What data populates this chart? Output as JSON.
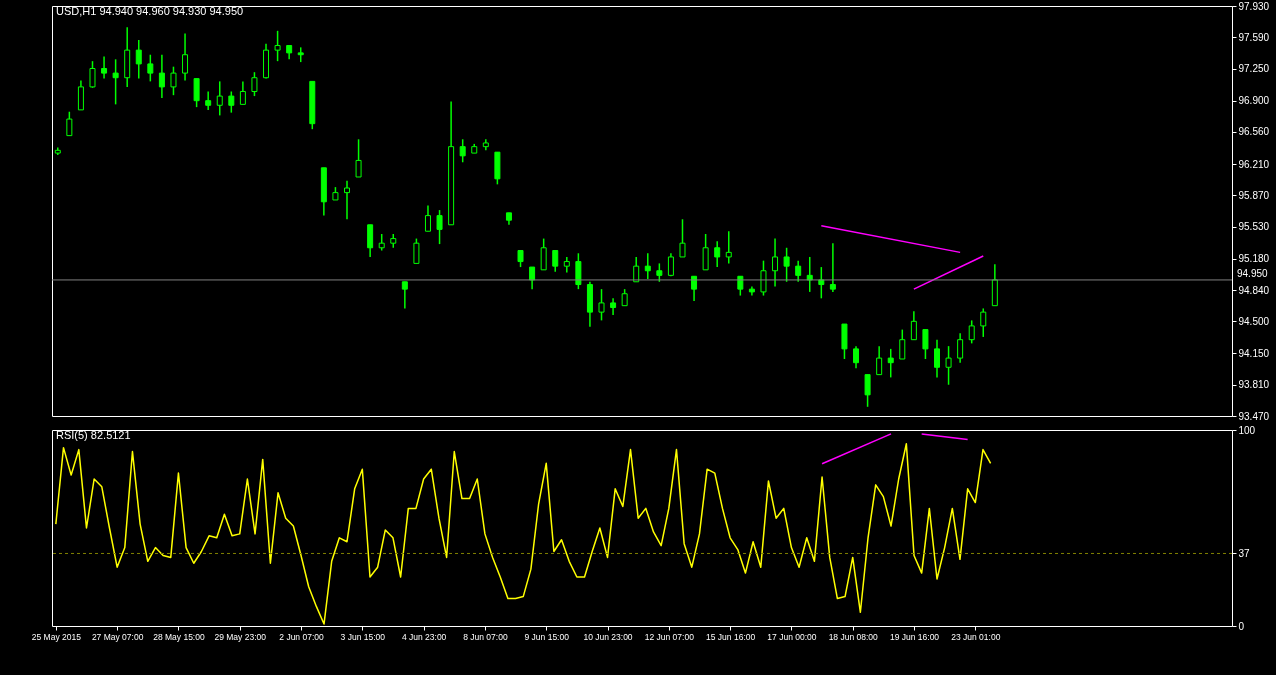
{
  "chart_data": [
    {
      "type": "candlestick",
      "title": "USD,H1  94.940 94.960 94.930 94.950",
      "color": "#00ff00",
      "tick_labels": "y",
      "categories": [
        null,
        null,
        null,
        null,
        null,
        null,
        null,
        null,
        null,
        null,
        null,
        null,
        null,
        null,
        null,
        null,
        null,
        null,
        null,
        null,
        null,
        null,
        null,
        null,
        null,
        null,
        null,
        null,
        null,
        null,
        null,
        null,
        null,
        null,
        null,
        null,
        null,
        null,
        null,
        null,
        null,
        null,
        null,
        null,
        null,
        null,
        null,
        null,
        null,
        null,
        null,
        null,
        null,
        null,
        null,
        null,
        null,
        null,
        null,
        null,
        null,
        null,
        null,
        null,
        null,
        null,
        null,
        null,
        null,
        null,
        null,
        null,
        null,
        null,
        null,
        null,
        null,
        null,
        null,
        null,
        null,
        null,
        null,
        null,
        null,
        null,
        null,
        null,
        null,
        null,
        null,
        null,
        null,
        null,
        null,
        null,
        null,
        null,
        null,
        null,
        null,
        null
      ],
      "ohlc": [
        [
          96.33,
          96.39,
          96.31,
          96.36
        ],
        [
          96.52,
          96.78,
          96.52,
          96.7
        ],
        [
          96.8,
          97.12,
          96.8,
          97.05
        ],
        [
          97.05,
          97.33,
          97.04,
          97.25
        ],
        [
          97.25,
          97.38,
          97.14,
          97.2
        ],
        [
          97.2,
          97.35,
          96.86,
          97.15
        ],
        [
          97.15,
          97.7,
          97.05,
          97.45
        ],
        [
          97.45,
          97.56,
          97.14,
          97.3
        ],
        [
          97.3,
          97.4,
          97.11,
          97.2
        ],
        [
          97.2,
          97.4,
          96.93,
          97.05
        ],
        [
          97.05,
          97.27,
          96.96,
          97.2
        ],
        [
          97.2,
          97.63,
          97.12,
          97.4
        ],
        [
          97.14,
          97.14,
          96.83,
          96.9
        ],
        [
          96.9,
          97.0,
          96.8,
          96.85
        ],
        [
          96.85,
          97.11,
          96.74,
          96.95
        ],
        [
          96.95,
          97.0,
          96.77,
          96.85
        ],
        [
          96.86,
          97.11,
          96.86,
          97.0
        ],
        [
          97.0,
          97.21,
          96.95,
          97.15
        ],
        [
          97.15,
          97.52,
          97.14,
          97.45
        ],
        [
          97.45,
          97.66,
          97.33,
          97.5
        ],
        [
          97.5,
          97.5,
          97.35,
          97.42
        ],
        [
          97.42,
          97.48,
          97.32,
          97.4
        ],
        [
          97.11,
          97.11,
          96.59,
          96.65
        ],
        [
          96.17,
          96.17,
          95.65,
          95.8
        ],
        [
          95.82,
          95.96,
          95.82,
          95.9
        ],
        [
          95.9,
          96.03,
          95.61,
          95.95
        ],
        [
          96.07,
          96.48,
          96.07,
          96.25
        ],
        [
          95.55,
          95.55,
          95.2,
          95.3
        ],
        [
          95.3,
          95.45,
          95.27,
          95.35
        ],
        [
          95.35,
          95.45,
          95.3,
          95.4
        ],
        [
          94.93,
          94.93,
          94.64,
          94.85
        ],
        [
          95.13,
          95.4,
          95.13,
          95.35
        ],
        [
          95.48,
          95.76,
          95.48,
          95.65
        ],
        [
          95.65,
          95.71,
          95.34,
          95.5
        ],
        [
          95.55,
          96.89,
          95.55,
          96.4
        ],
        [
          96.4,
          96.48,
          96.23,
          96.3
        ],
        [
          96.33,
          96.43,
          96.33,
          96.4
        ],
        [
          96.4,
          96.48,
          96.36,
          96.44
        ],
        [
          96.34,
          96.34,
          95.99,
          96.05
        ],
        [
          95.68,
          95.68,
          95.55,
          95.6
        ],
        [
          95.27,
          95.27,
          95.09,
          95.15
        ],
        [
          95.09,
          95.09,
          94.85,
          94.95
        ],
        [
          95.06,
          95.4,
          95.06,
          95.3
        ],
        [
          95.27,
          95.27,
          95.04,
          95.1
        ],
        [
          95.1,
          95.2,
          95.03,
          95.15
        ],
        [
          95.15,
          95.24,
          94.85,
          94.9
        ],
        [
          94.9,
          94.93,
          94.44,
          94.6
        ],
        [
          94.6,
          94.85,
          94.51,
          94.7
        ],
        [
          94.7,
          94.75,
          94.57,
          94.65
        ],
        [
          94.67,
          94.85,
          94.67,
          94.8
        ],
        [
          94.93,
          95.2,
          94.93,
          95.1
        ],
        [
          95.1,
          95.24,
          94.96,
          95.05
        ],
        [
          95.05,
          95.13,
          94.93,
          95.0
        ],
        [
          95.0,
          95.24,
          94.99,
          95.2
        ],
        [
          95.2,
          95.61,
          95.2,
          95.35
        ],
        [
          94.99,
          94.99,
          94.72,
          94.85
        ],
        [
          95.06,
          95.45,
          95.06,
          95.3
        ],
        [
          95.3,
          95.37,
          95.09,
          95.2
        ],
        [
          95.2,
          95.48,
          95.13,
          95.25
        ],
        [
          94.99,
          94.99,
          94.78,
          94.85
        ],
        [
          94.85,
          94.88,
          94.78,
          94.82
        ],
        [
          94.82,
          95.16,
          94.78,
          95.05
        ],
        [
          95.05,
          95.4,
          94.88,
          95.2
        ],
        [
          95.2,
          95.3,
          94.93,
          95.1
        ],
        [
          95.1,
          95.16,
          94.93,
          95.0
        ],
        [
          95.0,
          95.2,
          94.82,
          94.95
        ],
        [
          94.95,
          95.09,
          94.75,
          94.9
        ],
        [
          94.9,
          95.35,
          94.82,
          94.85
        ],
        [
          94.47,
          94.47,
          94.09,
          94.2
        ],
        [
          94.2,
          94.23,
          93.99,
          94.05
        ],
        [
          93.92,
          93.92,
          93.57,
          93.7
        ],
        [
          93.92,
          94.23,
          93.92,
          94.1
        ],
        [
          94.1,
          94.2,
          93.89,
          94.05
        ],
        [
          94.09,
          94.41,
          94.09,
          94.3
        ],
        [
          94.3,
          94.61,
          94.3,
          94.5
        ],
        [
          94.41,
          94.41,
          94.09,
          94.2
        ],
        [
          94.2,
          94.3,
          93.89,
          94.0
        ],
        [
          94.0,
          94.23,
          93.81,
          94.1
        ],
        [
          94.1,
          94.37,
          94.05,
          94.3
        ],
        [
          94.3,
          94.51,
          94.26,
          94.45
        ],
        [
          94.45,
          94.64,
          94.33,
          94.6
        ],
        [
          94.67,
          95.12,
          94.67,
          94.95
        ],
        null,
        null,
        null,
        null,
        null,
        null,
        null,
        null,
        null,
        null,
        null,
        null,
        null,
        null,
        null,
        null,
        null,
        null,
        null,
        null
      ],
      "series": [
        {
          "type": "line",
          "color": "#ff00ff",
          "values": [
            null,
            null,
            null,
            null,
            null,
            null,
            null,
            null,
            null,
            null,
            null,
            null,
            null,
            null,
            null,
            null,
            null,
            null,
            null,
            null,
            null,
            null,
            null,
            null,
            null,
            null,
            null,
            null,
            null,
            null,
            null,
            null,
            null,
            null,
            null,
            null,
            null,
            null,
            null,
            null,
            null,
            null,
            null,
            null,
            null,
            null,
            null,
            null,
            null,
            null,
            null,
            null,
            null,
            null,
            null,
            null,
            null,
            null,
            null,
            null,
            null,
            null,
            null,
            null,
            null,
            null,
            95.54,
            null,
            null,
            null,
            null,
            null,
            null,
            null,
            null,
            null,
            null,
            null,
            95.25,
            null,
            null,
            null,
            null,
            null,
            null,
            null,
            null,
            null,
            null,
            null,
            null,
            null,
            null,
            null,
            null,
            null,
            null,
            null,
            null,
            null,
            null,
            null
          ]
        },
        {
          "type": "line",
          "color": "#ff00ff",
          "values": [
            null,
            null,
            null,
            null,
            null,
            null,
            null,
            null,
            null,
            null,
            null,
            null,
            null,
            null,
            null,
            null,
            null,
            null,
            null,
            null,
            null,
            null,
            null,
            null,
            null,
            null,
            null,
            null,
            null,
            null,
            null,
            null,
            null,
            null,
            null,
            null,
            null,
            null,
            null,
            null,
            null,
            null,
            null,
            null,
            null,
            null,
            null,
            null,
            null,
            null,
            null,
            null,
            null,
            null,
            null,
            null,
            null,
            null,
            null,
            null,
            null,
            null,
            null,
            null,
            null,
            null,
            null,
            null,
            null,
            null,
            null,
            null,
            null,
            null,
            94.85,
            null,
            null,
            null,
            null,
            null,
            95.21,
            null,
            null,
            null,
            null,
            null,
            null,
            null,
            null,
            null,
            null,
            null,
            null,
            null,
            null,
            null,
            null,
            null,
            null,
            null,
            null,
            null
          ]
        }
      ],
      "ylim": [
        93.47,
        97.93
      ],
      "yticks": [
        {
          "value": 93.47,
          "label": "93.470"
        },
        {
          "value": 93.81,
          "label": "93.810"
        },
        {
          "value": 94.15,
          "label": "94.150"
        },
        {
          "value": 94.5,
          "label": "94.500"
        },
        {
          "value": 94.84,
          "label": "94.840"
        },
        {
          "value": 95.18,
          "label": "95.180"
        },
        {
          "value": 95.53,
          "label": "95.530"
        },
        {
          "value": 95.87,
          "label": "95.870"
        },
        {
          "value": 96.21,
          "label": "96.210"
        },
        {
          "value": 96.56,
          "label": "96.560"
        },
        {
          "value": 96.9,
          "label": "96.900"
        },
        {
          "value": 97.25,
          "label": "97.250"
        },
        {
          "value": 97.59,
          "label": "97.590"
        },
        {
          "value": 97.93,
          "label": "97.930"
        }
      ],
      "ref_lines": [
        {
          "axis": "y",
          "value": 94.95,
          "label": "94.950",
          "color": "#808080"
        }
      ]
    },
    {
      "type": "line",
      "title": "RSI(5) 82.5121",
      "categories": [
        "25 May 2015",
        null,
        null,
        null,
        null,
        null,
        null,
        null,
        "27 May 07:00",
        null,
        null,
        null,
        null,
        null,
        null,
        null,
        "28 May 15:00",
        null,
        null,
        null,
        null,
        null,
        null,
        null,
        "29 May 23:00",
        null,
        null,
        null,
        null,
        null,
        null,
        null,
        "2 Jun 07:00",
        null,
        null,
        null,
        null,
        null,
        null,
        null,
        "3 Jun 15:00",
        null,
        null,
        null,
        null,
        null,
        null,
        null,
        "4 Jun 23:00",
        null,
        null,
        null,
        null,
        null,
        null,
        null,
        "8 Jun 07:00",
        null,
        null,
        null,
        null,
        null,
        null,
        null,
        "9 Jun 15:00",
        null,
        null,
        null,
        null,
        null,
        null,
        null,
        "10 Jun 23:00",
        null,
        null,
        null,
        null,
        null,
        null,
        null,
        "12 Jun 07:00",
        null,
        null,
        null,
        null,
        null,
        null,
        null,
        "15 Jun 16:00",
        null,
        null,
        null,
        null,
        null,
        null,
        null,
        "17 Jun 00:00",
        null,
        null,
        null,
        null,
        null,
        null,
        null,
        "18 Jun 08:00",
        null,
        null,
        null,
        null,
        null,
        null,
        null,
        "19 Jun 16:00",
        null,
        null,
        null,
        null,
        null,
        null,
        null,
        "23 Jun 01:00",
        null,
        null,
        null,
        null,
        null,
        null,
        null,
        null,
        null,
        null,
        null,
        null,
        null,
        null,
        null,
        null,
        null,
        null,
        null,
        null,
        null,
        null,
        null,
        null,
        null,
        null,
        null,
        null,
        null,
        null,
        null,
        null,
        null
      ],
      "series": [
        {
          "color": "#ffff00",
          "values": [
            52,
            91,
            77,
            90,
            50,
            75,
            71,
            50,
            30,
            40,
            89,
            52,
            33,
            40,
            36,
            35,
            78,
            40,
            32,
            38,
            46,
            45,
            57,
            46,
            47,
            75,
            47,
            85,
            32,
            68,
            55,
            51,
            36,
            20,
            10,
            1,
            33,
            45,
            43,
            70,
            80,
            25,
            30,
            49,
            45,
            25,
            60,
            60,
            75,
            80,
            55,
            35,
            89,
            65,
            65,
            75,
            47,
            35,
            25,
            14,
            14,
            15,
            29,
            62,
            83,
            38,
            44,
            33,
            25,
            25,
            38,
            50,
            35,
            70,
            61,
            90,
            55,
            60,
            48,
            41,
            60,
            90,
            42,
            30,
            47,
            80,
            78,
            60,
            45,
            39,
            27,
            43,
            30,
            74,
            55,
            60,
            40,
            30,
            45,
            33,
            76,
            35,
            14,
            15,
            35,
            7,
            45,
            72,
            66,
            51,
            75,
            93,
            36,
            27,
            60,
            24,
            40,
            60,
            34,
            70,
            63,
            90,
            83,
            null,
            null,
            null,
            null,
            null,
            null,
            null,
            null,
            null,
            null,
            null,
            null,
            null,
            null,
            null,
            null,
            null,
            null,
            null,
            null,
            null,
            null,
            null,
            null,
            null,
            null,
            null,
            null,
            null,
            null,
            null
          ]
        },
        {
          "color": "#ff00ff",
          "values": [
            null,
            null,
            null,
            null,
            null,
            null,
            null,
            null,
            null,
            null,
            null,
            null,
            null,
            null,
            null,
            null,
            null,
            null,
            null,
            null,
            null,
            null,
            null,
            null,
            null,
            null,
            null,
            null,
            null,
            null,
            null,
            null,
            null,
            null,
            null,
            null,
            null,
            null,
            null,
            null,
            null,
            null,
            null,
            null,
            null,
            null,
            null,
            null,
            null,
            null,
            null,
            null,
            null,
            null,
            null,
            null,
            null,
            null,
            null,
            null,
            null,
            null,
            null,
            null,
            null,
            null,
            null,
            null,
            null,
            null,
            null,
            null,
            null,
            null,
            null,
            null,
            null,
            null,
            null,
            null,
            null,
            null,
            null,
            null,
            null,
            null,
            null,
            null,
            null,
            null,
            null,
            null,
            null,
            null,
            null,
            null,
            null,
            null,
            null,
            null,
            82.8,
            null,
            null,
            null,
            null,
            null,
            null,
            null,
            null,
            98,
            null,
            null,
            null,
            null,
            null,
            null,
            null,
            null,
            null,
            null,
            null,
            null,
            null,
            null,
            null,
            null,
            null,
            null,
            null,
            null,
            null,
            null,
            null,
            null,
            null,
            null,
            null,
            null,
            null,
            null,
            null,
            null,
            null,
            null,
            null,
            null,
            null,
            null,
            null,
            null,
            null,
            null,
            null,
            null
          ]
        },
        {
          "color": "#ff00ff",
          "values": [
            null,
            null,
            null,
            null,
            null,
            null,
            null,
            null,
            null,
            null,
            null,
            null,
            null,
            null,
            null,
            null,
            null,
            null,
            null,
            null,
            null,
            null,
            null,
            null,
            null,
            null,
            null,
            null,
            null,
            null,
            null,
            null,
            null,
            null,
            null,
            null,
            null,
            null,
            null,
            null,
            null,
            null,
            null,
            null,
            null,
            null,
            null,
            null,
            null,
            null,
            null,
            null,
            null,
            null,
            null,
            null,
            null,
            null,
            null,
            null,
            null,
            null,
            null,
            null,
            null,
            null,
            null,
            null,
            null,
            null,
            null,
            null,
            null,
            null,
            null,
            null,
            null,
            null,
            null,
            null,
            null,
            null,
            null,
            null,
            null,
            null,
            null,
            null,
            null,
            null,
            null,
            null,
            null,
            null,
            null,
            null,
            null,
            null,
            null,
            null,
            null,
            null,
            null,
            null,
            null,
            null,
            null,
            null,
            null,
            null,
            null,
            null,
            null,
            98,
            null,
            null,
            null,
            null,
            null,
            95.1,
            null,
            null,
            null,
            null,
            null,
            null,
            null,
            null,
            null,
            null,
            null,
            null,
            null,
            null,
            null,
            null,
            null,
            null,
            null,
            null,
            null,
            null,
            null,
            null,
            null,
            null,
            null,
            null,
            null,
            null,
            null,
            null,
            null,
            null
          ]
        }
      ],
      "ylim": [
        0,
        100
      ],
      "yticks": [
        0,
        37,
        100
      ],
      "ref_lines": [
        {
          "axis": "y",
          "value": 37,
          "color": "#808000",
          "line_style": "dashed"
        }
      ]
    }
  ]
}
